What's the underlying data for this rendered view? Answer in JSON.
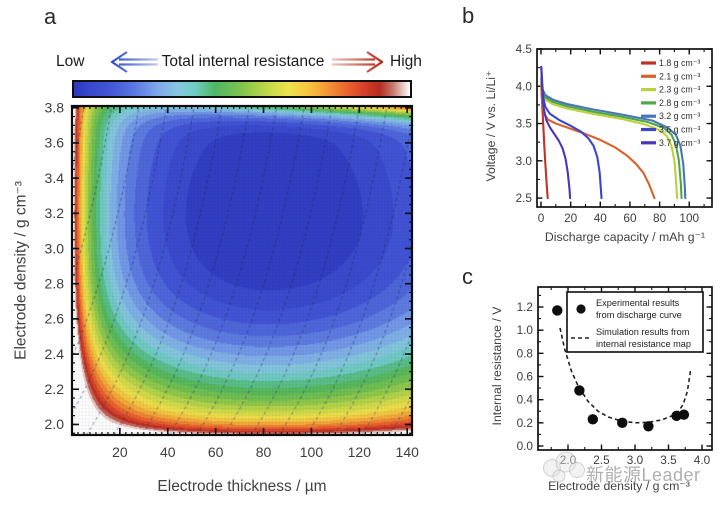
{
  "panels": {
    "a": {
      "letter": "a"
    },
    "b": {
      "letter": "b"
    },
    "c": {
      "letter": "c"
    }
  },
  "watermark": {
    "text": "新能源Leader"
  },
  "chart_data": [
    {
      "type": "heatmap",
      "panel": "a",
      "title": "Total internal resistance",
      "colorbar": {
        "low": "Low",
        "high": "High"
      },
      "xlabel": "Electrode thickness / µm",
      "ylabel": "Electrode density / g cm⁻³",
      "xlim": [
        0,
        142
      ],
      "ylim": [
        1.94,
        3.81
      ],
      "xticks": [
        20,
        40,
        60,
        80,
        100,
        120,
        140
      ],
      "yticks": [
        2.0,
        2.2,
        2.4,
        2.6,
        2.8,
        3.0,
        3.2,
        3.4,
        3.6,
        3.8
      ],
      "xtick_minor": 2.5,
      "ytick_minor": 0.05,
      "levels": 24,
      "color_stops": [
        [
          0.0,
          "#2c39c0"
        ],
        [
          0.05,
          "#3a49cd"
        ],
        [
          0.11,
          "#4457d8"
        ],
        [
          0.18,
          "#5b78e2"
        ],
        [
          0.25,
          "#7fa8ec"
        ],
        [
          0.31,
          "#86c8e0"
        ],
        [
          0.36,
          "#6fcdc2"
        ],
        [
          0.42,
          "#4eb763"
        ],
        [
          0.5,
          "#7fc54d"
        ],
        [
          0.57,
          "#bdd748"
        ],
        [
          0.64,
          "#eee34c"
        ],
        [
          0.7,
          "#f6c33f"
        ],
        [
          0.75,
          "#f49a36"
        ],
        [
          0.8,
          "#ec6d2f"
        ],
        [
          0.86,
          "#d94229"
        ],
        [
          0.91,
          "#b52c20"
        ],
        [
          0.95,
          "#c97b6f"
        ],
        [
          1.0,
          "#ffffff"
        ]
      ],
      "model": {
        "x0": 0.045,
        "xw": 0.13,
        "y0": 0.05,
        "yw": 0.085,
        "bump": 0.8,
        "bw": 0.3,
        "camp": 0.75,
        "cu": 2.2,
        "cv": 1.6,
        "cx": 0.48,
        "cy": 0.57,
        "tamp": 2.0,
        "ts": 0.85,
        "tp": 4,
        "off": 0.4,
        "scale": 2.7
      },
      "iso_lines": {
        "style": "dashed",
        "K": 178,
        "dmin": 1.94,
        "spacing_um": 11.5,
        "t_start": -40,
        "t_end": 150
      },
      "features": "Resistance highest (white/red) at thickness < 15 µm and density < 2.1 g cm⁻³; minimum (dark blue) near 45–95 µm and 2.75–3.25 g cm⁻³; mild increase along top edge at high density"
    },
    {
      "type": "line",
      "panel": "b",
      "xlabel": "Discharge capacity / mAh g⁻¹",
      "ylabel": "Voltage / V vs. Li/Li⁺",
      "xlim": [
        -3,
        115.5
      ],
      "ylim": [
        2.38,
        4.5
      ],
      "xticks": [
        0,
        20,
        40,
        60,
        80,
        100
      ],
      "yticks": [
        2.5,
        3.0,
        3.5,
        4.0,
        4.5
      ],
      "xtick_minor": 10,
      "ytick_minor": 0.25,
      "legend_position": "top-right",
      "series": [
        {
          "name": "1.8 g cm⁻³",
          "color": "#bf3226",
          "points": [
            [
              0.2,
              4.0
            ],
            [
              0.8,
              3.75
            ],
            [
              1.5,
              3.5
            ],
            [
              2.2,
              3.2
            ],
            [
              3,
              2.95
            ],
            [
              3.8,
              2.7
            ],
            [
              4.5,
              2.5
            ]
          ]
        },
        {
          "name": "2.1 g cm⁻³",
          "color": "#d8622e",
          "points": [
            [
              0.2,
              4.02
            ],
            [
              0.6,
              3.85
            ],
            [
              1.2,
              3.72
            ],
            [
              2.5,
              3.62
            ],
            [
              5,
              3.55
            ],
            [
              10,
              3.5
            ],
            [
              20,
              3.43
            ],
            [
              30,
              3.36
            ],
            [
              40,
              3.28
            ],
            [
              50,
              3.18
            ],
            [
              58,
              3.07
            ],
            [
              64,
              2.96
            ],
            [
              69,
              2.84
            ],
            [
              73,
              2.68
            ],
            [
              75.5,
              2.55
            ],
            [
              76.5,
              2.5
            ]
          ]
        },
        {
          "name": "2.3 g cm⁻³",
          "color": "#bdcf3c",
          "points": [
            [
              0.2,
              4.03
            ],
            [
              1,
              3.9
            ],
            [
              3,
              3.82
            ],
            [
              8,
              3.76
            ],
            [
              18,
              3.7
            ],
            [
              35,
              3.63
            ],
            [
              55,
              3.56
            ],
            [
              70,
              3.49
            ],
            [
              80,
              3.41
            ],
            [
              85,
              3.33
            ],
            [
              88,
              3.2
            ],
            [
              90,
              3.0
            ],
            [
              91,
              2.75
            ],
            [
              91.8,
              2.5
            ]
          ]
        },
        {
          "name": "2.8 g cm⁻³",
          "color": "#4aa847",
          "points": [
            [
              0.2,
              4.05
            ],
            [
              1,
              3.93
            ],
            [
              3,
              3.85
            ],
            [
              8,
              3.79
            ],
            [
              18,
              3.73
            ],
            [
              35,
              3.66
            ],
            [
              55,
              3.59
            ],
            [
              72,
              3.52
            ],
            [
              83,
              3.44
            ],
            [
              88,
              3.35
            ],
            [
              91,
              3.22
            ],
            [
              93,
              3.0
            ],
            [
              94.3,
              2.7
            ],
            [
              94.8,
              2.5
            ]
          ]
        },
        {
          "name": "3.2 g cm⁻³",
          "color": "#4a74b8",
          "points": [
            [
              0.2,
              4.1
            ],
            [
              1,
              3.96
            ],
            [
              3,
              3.88
            ],
            [
              8,
              3.82
            ],
            [
              18,
              3.76
            ],
            [
              35,
              3.69
            ],
            [
              55,
              3.62
            ],
            [
              75,
              3.54
            ],
            [
              85,
              3.45
            ],
            [
              91,
              3.35
            ],
            [
              94,
              3.2
            ],
            [
              96,
              2.95
            ],
            [
              97,
              2.65
            ],
            [
              97.3,
              2.5
            ]
          ]
        },
        {
          "name": "3.6 g cm⁻³",
          "color": "#3a45cc",
          "points": [
            [
              0.2,
              4.26
            ],
            [
              0.8,
              4.05
            ],
            [
              1.5,
              3.85
            ],
            [
              3,
              3.72
            ],
            [
              6,
              3.63
            ],
            [
              12,
              3.55
            ],
            [
              20,
              3.47
            ],
            [
              27,
              3.39
            ],
            [
              32,
              3.3
            ],
            [
              35.5,
              3.2
            ],
            [
              38,
              3.05
            ],
            [
              39.5,
              2.85
            ],
            [
              40.5,
              2.6
            ],
            [
              40.8,
              2.5
            ]
          ]
        },
        {
          "name": "3.7 g cm⁻³",
          "color": "#4c34bb",
          "points": [
            [
              0.2,
              4.26
            ],
            [
              0.8,
              3.95
            ],
            [
              1.8,
              3.7
            ],
            [
              3.5,
              3.55
            ],
            [
              6,
              3.45
            ],
            [
              9,
              3.36
            ],
            [
              12,
              3.27
            ],
            [
              14.5,
              3.17
            ],
            [
              16.5,
              3.03
            ],
            [
              18,
              2.85
            ],
            [
              19.2,
              2.62
            ],
            [
              19.6,
              2.5
            ]
          ]
        }
      ]
    },
    {
      "type": "scatter",
      "panel": "c",
      "xlabel": "Electrode density / g cm⁻³",
      "ylabel": "Internal resistance / V",
      "xlim": [
        1.55,
        4.15
      ],
      "ylim": [
        -0.04,
        1.38
      ],
      "xticks": [
        2.0,
        2.5,
        3.0,
        3.5,
        4.0
      ],
      "yticks": [
        0.0,
        0.2,
        0.4,
        0.6,
        0.8,
        1.0,
        1.2
      ],
      "xtick_minor": 0.25,
      "ytick_minor": 0.1,
      "legend": {
        "experimental": [
          "Experimental results",
          "from discharge curve"
        ],
        "simulation": [
          "Simulation results from",
          "internal resistance map"
        ]
      },
      "experimental_points": [
        [
          1.84,
          1.17
        ],
        [
          2.17,
          0.48
        ],
        [
          2.37,
          0.23
        ],
        [
          2.81,
          0.2
        ],
        [
          3.2,
          0.17
        ],
        [
          3.62,
          0.26
        ],
        [
          3.73,
          0.27
        ]
      ],
      "simulation_curve": [
        [
          1.88,
          1.02
        ],
        [
          1.95,
          0.84
        ],
        [
          2.05,
          0.65
        ],
        [
          2.15,
          0.52
        ],
        [
          2.3,
          0.385
        ],
        [
          2.45,
          0.3
        ],
        [
          2.6,
          0.25
        ],
        [
          2.8,
          0.215
        ],
        [
          3.0,
          0.2
        ],
        [
          3.2,
          0.205
        ],
        [
          3.4,
          0.225
        ],
        [
          3.55,
          0.26
        ],
        [
          3.65,
          0.3
        ],
        [
          3.72,
          0.36
        ],
        [
          3.78,
          0.47
        ],
        [
          3.81,
          0.58
        ],
        [
          3.83,
          0.66
        ]
      ]
    }
  ]
}
